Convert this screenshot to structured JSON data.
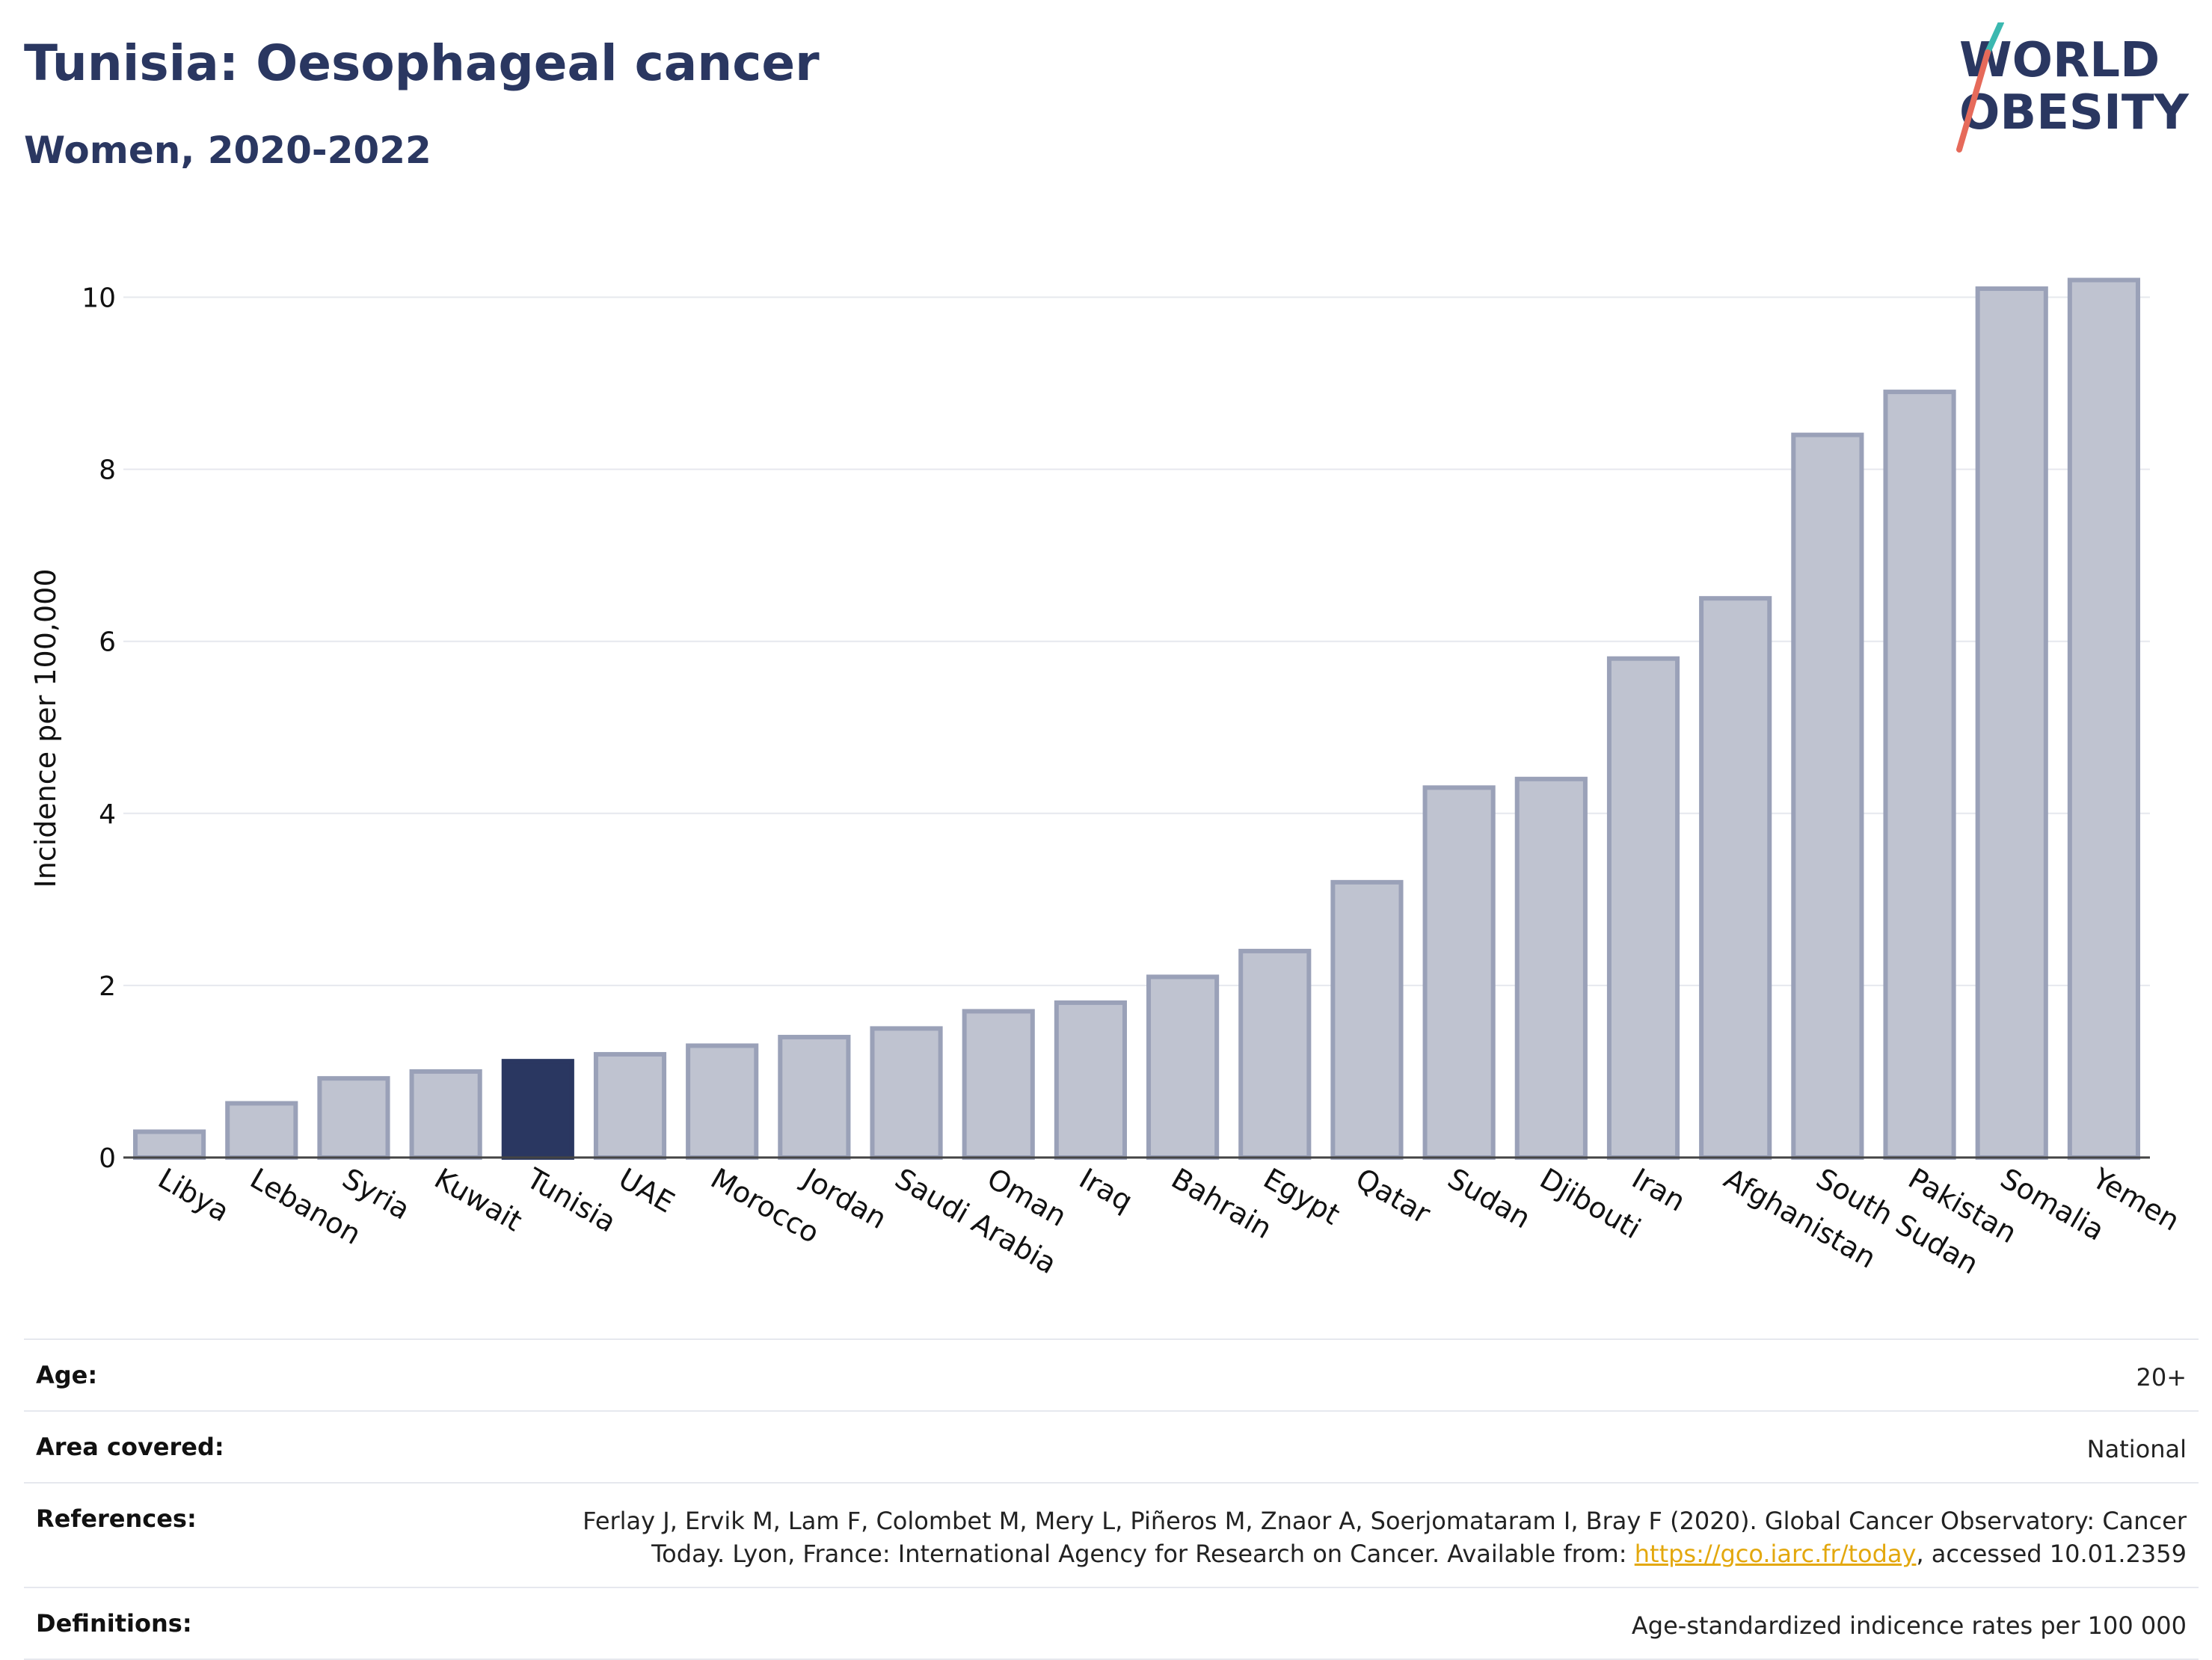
{
  "header": {
    "title": "Tunisia: Oesophageal cancer",
    "subtitle": "Women, 2020-2022"
  },
  "logo": {
    "line1": "WORLD",
    "line2": "OBESITY",
    "colors": {
      "text": "#2a3761",
      "slash_top": "#3bb8b0",
      "slash_bottom": "#e66a5a"
    }
  },
  "chart_data": {
    "type": "bar",
    "title": "",
    "xlabel": "",
    "ylabel": "Incidence per 100,000",
    "ylim": [
      0,
      10.5
    ],
    "yticks": [
      0,
      2,
      4,
      6,
      8,
      10
    ],
    "grid": true,
    "highlight": "Tunisia",
    "colors": {
      "bar": "#bfc3d0",
      "bar_edge": "#9aa1b8",
      "highlight": "#2a3761",
      "grid": "#e6e8ee"
    },
    "categories": [
      "Libya",
      "Lebanon",
      "Syria",
      "Kuwait",
      "Tunisia",
      "UAE",
      "Morocco",
      "Jordan",
      "Saudi Arabia",
      "Oman",
      "Iraq",
      "Bahrain",
      "Egypt",
      "Qatar",
      "Sudan",
      "Djibouti",
      "Iran",
      "Afghanistan",
      "South Sudan",
      "Pakistan",
      "Somalia",
      "Yemen"
    ],
    "values": [
      0.3,
      0.63,
      0.92,
      1.0,
      1.12,
      1.2,
      1.3,
      1.4,
      1.5,
      1.7,
      1.8,
      2.1,
      2.4,
      3.2,
      4.3,
      4.4,
      5.8,
      6.5,
      8.4,
      8.9,
      10.1,
      10.2
    ]
  },
  "meta": {
    "age_label": "Age:",
    "age_value": "20+",
    "area_label": "Area covered:",
    "area_value": "National",
    "references_label": "References:",
    "references_line1": "Ferlay J, Ervik M, Lam F, Colombet M, Mery L, Piñeros M, Znaor A, Soerjomataram I, Bray F (2020). Global Cancer Observatory: Cancer",
    "references_line2_pre": "Today. Lyon, France: International Agency for Research on Cancer. Available from: ",
    "references_link": "https://gco.iarc.fr/today",
    "references_line2_post": ", accessed 10.01.2359",
    "definitions_label": "Definitions:",
    "definitions_value": "Age-standardized indicence rates per 100 000"
  }
}
